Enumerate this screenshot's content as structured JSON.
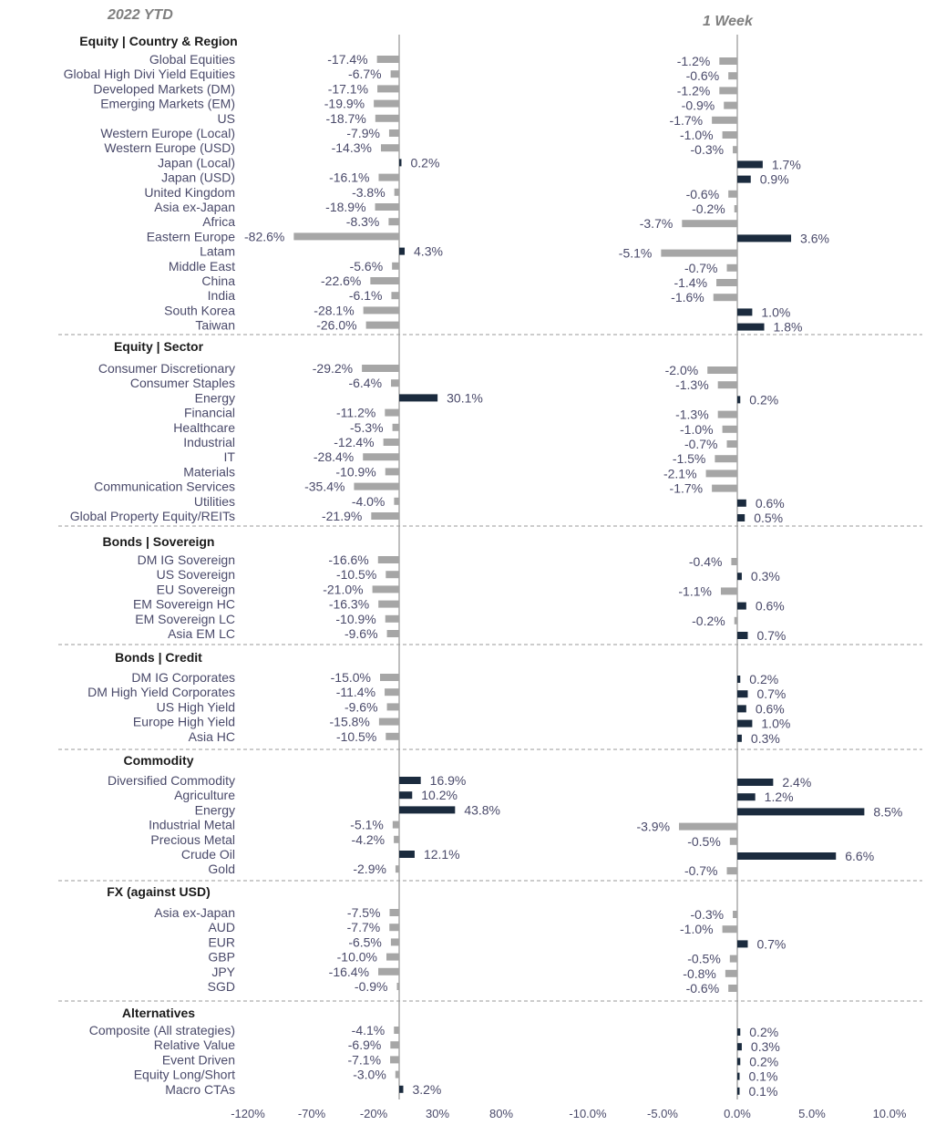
{
  "colors": {
    "negative": "#a6a6a6",
    "positive": "#1b2b3e",
    "text": "#4a4a6a",
    "divider": "#9a9a9a"
  },
  "chart_data": [
    {
      "type": "bar",
      "orientation": "horizontal",
      "title": "2022 YTD",
      "unit": "%",
      "xlim": [
        -120,
        80
      ],
      "xticks": [
        "-120%",
        "-70%",
        "-20%",
        "30%",
        "80%"
      ],
      "sections": [
        {
          "name": "Equity | Country & Region",
          "categories": [
            "Global Equities",
            "Global High Divi Yield Equities",
            "Developed Markets (DM)",
            "Emerging Markets (EM)",
            "US",
            "Western Europe (Local)",
            "Western Europe (USD)",
            "Japan (Local)",
            "Japan (USD)",
            "United Kingdom",
            "Asia ex-Japan",
            "Africa",
            "Eastern Europe",
            "Latam",
            "Middle East",
            "China",
            "India",
            "South Korea",
            "Taiwan"
          ],
          "values": [
            -17.4,
            -6.7,
            -17.1,
            -19.9,
            -18.7,
            -7.9,
            -14.3,
            0.2,
            -16.1,
            -3.8,
            -18.9,
            -8.3,
            -82.6,
            4.3,
            -5.6,
            -22.6,
            -6.1,
            -28.1,
            -26.0
          ],
          "labels": [
            "-17.4%",
            "-6.7%",
            "-17.1%",
            "-19.9%",
            "-18.7%",
            "-7.9%",
            "-14.3%",
            "0.2%",
            "-16.1%",
            "-3.8%",
            "-18.9%",
            "-8.3%",
            "-82.6%",
            "4.3%",
            "-5.6%",
            "-22.6%",
            "-6.1%",
            "-28.1%",
            "-26.0%"
          ]
        },
        {
          "name": "Equity | Sector",
          "categories": [
            "Consumer Discretionary",
            "Consumer Staples",
            "Energy",
            "Financial",
            "Healthcare",
            "Industrial",
            "IT",
            "Materials",
            "Communication Services",
            "Utilities",
            "Global Property Equity/REITs"
          ],
          "values": [
            -29.2,
            -6.4,
            30.1,
            -11.2,
            -5.3,
            -12.4,
            -28.4,
            -10.9,
            -35.4,
            -4.0,
            -21.9
          ],
          "labels": [
            "-29.2%",
            "-6.4%",
            "30.1%",
            "-11.2%",
            "-5.3%",
            "-12.4%",
            "-28.4%",
            "-10.9%",
            "-35.4%",
            "-4.0%",
            "-21.9%"
          ]
        },
        {
          "name": "Bonds | Sovereign",
          "categories": [
            "DM IG Sovereign",
            "US Sovereign",
            "EU Sovereign",
            "EM Sovereign HC",
            "EM Sovereign LC",
            "Asia EM LC"
          ],
          "values": [
            -16.6,
            -10.5,
            -21.0,
            -16.3,
            -10.9,
            -9.6
          ],
          "labels": [
            "-16.6%",
            "-10.5%",
            "-21.0%",
            "-16.3%",
            "-10.9%",
            "-9.6%"
          ]
        },
        {
          "name": "Bonds | Credit",
          "categories": [
            "DM IG Corporates",
            "DM High Yield Corporates",
            "US High Yield",
            "Europe High Yield",
            "Asia HC"
          ],
          "values": [
            -15.0,
            -11.4,
            -9.6,
            -15.8,
            -10.5
          ],
          "labels": [
            "-15.0%",
            "-11.4%",
            "-9.6%",
            "-15.8%",
            "-10.5%"
          ]
        },
        {
          "name": "Commodity",
          "categories": [
            "Diversified Commodity",
            "Agriculture",
            "Energy",
            "Industrial Metal",
            "Precious Metal",
            "Crude Oil",
            "Gold"
          ],
          "values": [
            16.9,
            10.2,
            43.8,
            -5.1,
            -4.2,
            12.1,
            -2.9
          ],
          "labels": [
            "16.9%",
            "10.2%",
            "43.8%",
            "-5.1%",
            "-4.2%",
            "12.1%",
            "-2.9%"
          ]
        },
        {
          "name": "FX (against USD)",
          "categories": [
            "Asia ex-Japan",
            "AUD",
            "EUR",
            "GBP",
            "JPY",
            "SGD"
          ],
          "values": [
            -7.5,
            -7.7,
            -6.5,
            -10.0,
            -16.4,
            -0.9
          ],
          "labels": [
            "-7.5%",
            "-7.7%",
            "-6.5%",
            "-10.0%",
            "-16.4%",
            "-0.9%"
          ]
        },
        {
          "name": "Alternatives",
          "categories": [
            "Composite (All strategies)",
            "Relative Value",
            "Event Driven",
            "Equity Long/Short",
            "Macro CTAs"
          ],
          "values": [
            -4.1,
            -6.9,
            -7.1,
            -3.0,
            3.2
          ],
          "labels": [
            "-4.1%",
            "-6.9%",
            "-7.1%",
            "-3.0%",
            "3.2%"
          ]
        }
      ]
    },
    {
      "type": "bar",
      "orientation": "horizontal",
      "title": "1 Week",
      "unit": "%",
      "xlim": [
        -10,
        10
      ],
      "xticks": [
        "-10.0%",
        "-5.0%",
        "0.0%",
        "5.0%",
        "10.0%"
      ],
      "sections": [
        {
          "name": "Equity | Country & Region",
          "values": [
            -1.2,
            -0.6,
            -1.2,
            -0.9,
            -1.7,
            -1.0,
            -0.3,
            1.7,
            0.9,
            -0.6,
            -0.2,
            -3.7,
            3.6,
            -5.1,
            -0.7,
            -1.4,
            -1.6,
            1.0,
            1.8
          ],
          "labels": [
            "-1.2%",
            "-0.6%",
            "-1.2%",
            "-0.9%",
            "-1.7%",
            "-1.0%",
            "-0.3%",
            "1.7%",
            "0.9%",
            "-0.6%",
            "-0.2%",
            "-3.7%",
            "3.6%",
            "-5.1%",
            "-0.7%",
            "-1.4%",
            "-1.6%",
            "1.0%",
            "1.8%"
          ]
        },
        {
          "name": "Equity | Sector",
          "values": [
            -2.0,
            -1.3,
            0.2,
            -1.3,
            -1.0,
            -0.7,
            -1.5,
            -2.1,
            -1.7,
            0.6,
            0.5
          ],
          "labels": [
            "-2.0%",
            "-1.3%",
            "0.2%",
            "-1.3%",
            "-1.0%",
            "-0.7%",
            "-1.5%",
            "-2.1%",
            "-1.7%",
            "0.6%",
            "0.5%"
          ]
        },
        {
          "name": "Bonds | Sovereign",
          "values": [
            -0.4,
            0.3,
            -1.1,
            0.6,
            -0.2,
            0.7
          ],
          "labels": [
            "-0.4%",
            "0.3%",
            "-1.1%",
            "0.6%",
            "-0.2%",
            "0.7%"
          ]
        },
        {
          "name": "Bonds | Credit",
          "values": [
            0.2,
            0.7,
            0.6,
            1.0,
            0.3
          ],
          "labels": [
            "0.2%",
            "0.7%",
            "0.6%",
            "1.0%",
            "0.3%"
          ]
        },
        {
          "name": "Commodity",
          "values": [
            2.4,
            1.2,
            8.5,
            -3.9,
            -0.5,
            6.6,
            -0.7
          ],
          "labels": [
            "2.4%",
            "1.2%",
            "8.5%",
            "-3.9%",
            "-0.5%",
            "6.6%",
            "-0.7%"
          ]
        },
        {
          "name": "FX (against USD)",
          "values": [
            -0.3,
            -1.0,
            0.7,
            -0.5,
            -0.8,
            -0.6
          ],
          "labels": [
            "-0.3%",
            "-1.0%",
            "0.7%",
            "-0.5%",
            "-0.8%",
            "-0.6%"
          ]
        },
        {
          "name": "Alternatives",
          "values": [
            0.2,
            0.3,
            0.2,
            0.1,
            0.1
          ],
          "labels": [
            "0.2%",
            "0.3%",
            "0.2%",
            "0.1%",
            "0.1%"
          ]
        }
      ]
    }
  ]
}
